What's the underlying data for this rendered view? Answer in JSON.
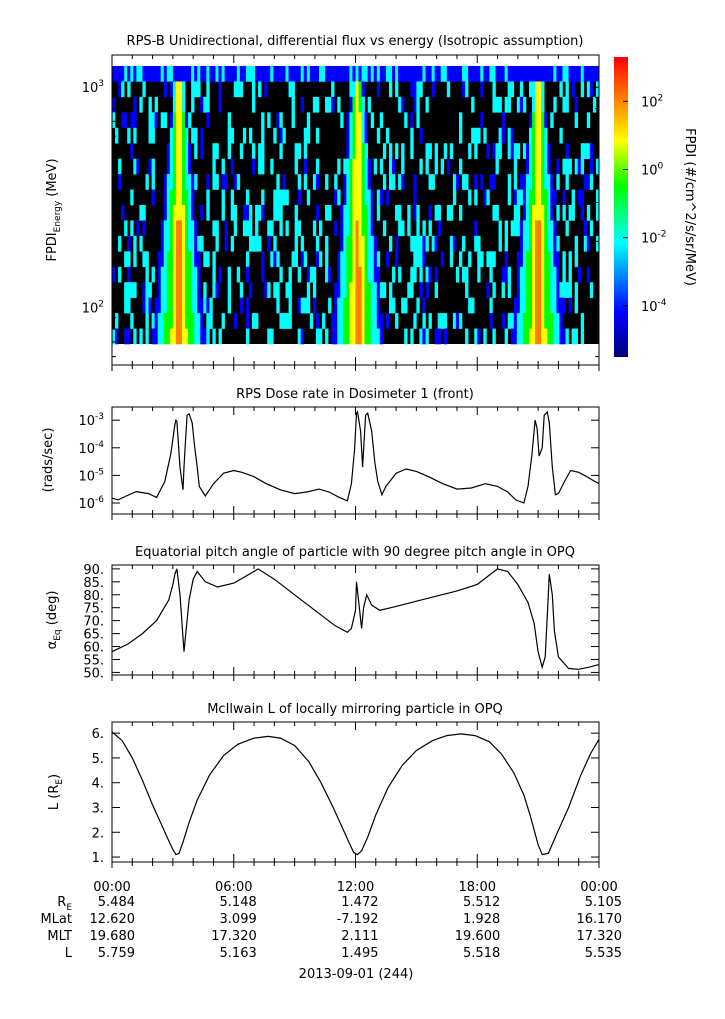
{
  "chart_data": [
    {
      "type": "heatmap",
      "title": "RPS-B  Unidirectional, differential flux vs energy (Isotropic assumption)",
      "ylabel": "FPDI",
      "ylabel_sub": "Energy",
      "ylabel_unit": " (MeV)",
      "yscale": "log",
      "ylim": [
        55,
        1400
      ],
      "yticks": [
        {
          "value": 100,
          "base": "10",
          "exp": "2"
        },
        {
          "value": 1000,
          "base": "10",
          "exp": "3"
        }
      ],
      "x_hours": [
        0,
        24
      ],
      "colorbar": {
        "label": "FPDI (#/cm^2/s/sr/MeV)",
        "scale": "log",
        "range_log10": [
          -5.5,
          3.3
        ],
        "ticks": [
          {
            "log10": 2,
            "base": "10",
            "exp": "2"
          },
          {
            "log10": 0,
            "base": "10",
            "exp": "0"
          },
          {
            "log10": -2,
            "base": "10",
            "exp": "-2"
          },
          {
            "log10": -4,
            "base": "10",
            "exp": "-4"
          }
        ],
        "colormap": [
          "#00007f",
          "#0000ff",
          "#00ffff",
          "#00ff00",
          "#ffff00",
          "#ff7f00",
          "#ff0000"
        ]
      },
      "belt_passes_hours": [
        3.3,
        12.1,
        21.0
      ],
      "background_color": "#000000"
    },
    {
      "type": "line",
      "title": "RPS  Dose rate in Dosimeter 1 (front)",
      "ylabel": "(rads/sec)",
      "yscale": "log",
      "ylim": [
        4e-07,
        0.003
      ],
      "yticks": [
        {
          "value": 1e-06,
          "base": "10",
          "exp": "-6"
        },
        {
          "value": 1e-05,
          "base": "10",
          "exp": "-5"
        },
        {
          "value": 0.0001,
          "base": "10",
          "exp": "-4"
        },
        {
          "value": 0.001,
          "base": "10",
          "exp": "-3"
        }
      ],
      "x_hours": [
        0,
        24
      ],
      "series": [
        {
          "x": [
            0,
            0.3,
            0.7,
            1.2,
            1.8,
            2.2,
            2.6,
            2.9,
            3.1,
            3.15,
            3.2,
            3.35,
            3.5,
            3.55,
            3.6,
            3.7,
            3.8,
            3.95,
            4.05,
            4.2,
            4.3,
            4.6,
            5.0,
            5.5,
            6.0,
            6.4,
            7.0,
            7.6,
            8.3,
            9.0,
            9.6,
            10.2,
            10.7,
            11.2,
            11.6,
            11.8,
            11.95,
            12.05,
            12.1,
            12.15,
            12.25,
            12.35,
            12.5,
            12.6,
            12.8,
            12.95,
            13.1,
            13.3,
            13.5,
            14.0,
            14.5,
            15.0,
            15.6,
            16.3,
            17.0,
            17.7,
            18.4,
            19.0,
            19.5,
            19.9,
            20.3,
            20.5,
            20.7,
            20.85,
            20.95,
            21.05,
            21.2,
            21.3,
            21.45,
            21.55,
            21.7,
            21.85,
            22.0,
            22.3,
            22.6,
            23.0,
            23.4,
            23.8,
            24.0
          ],
          "y": [
            1.5e-06,
            1.3e-06,
            1.8e-06,
            2.6e-06,
            2.2e-06,
            1.6e-06,
            6e-06,
            6e-05,
            0.0007,
            0.001,
            0.0009,
            2e-05,
            3e-06,
            2e-05,
            0.0001,
            0.0015,
            0.0017,
            0.0008,
            0.00015,
            2e-05,
            4e-06,
            1.8e-06,
            5e-06,
            1.2e-05,
            1.5e-05,
            1.3e-05,
            9e-06,
            5e-06,
            3e-06,
            2.2e-06,
            2.5e-06,
            3.2e-06,
            2.5e-06,
            1.6e-06,
            1.2e-06,
            5e-06,
            8e-05,
            0.0018,
            0.002,
            0.0012,
            0.0004,
            2e-05,
            0.0015,
            0.0018,
            0.0004,
            3e-05,
            6e-06,
            2e-06,
            4e-06,
            1.2e-05,
            1.7e-05,
            1.4e-05,
            9e-06,
            5e-06,
            3.2e-06,
            3.5e-06,
            5e-06,
            4e-06,
            2.5e-06,
            1.3e-06,
            1e-06,
            4e-06,
            6e-05,
            0.001,
            0.0005,
            5e-05,
            0.0001,
            0.0015,
            0.002,
            0.0008,
            2e-05,
            2e-06,
            2.2e-06,
            6e-06,
            1.5e-05,
            1.3e-05,
            9e-06,
            6e-06,
            5e-06
          ]
        }
      ]
    },
    {
      "type": "line",
      "title": "Equatorial pitch angle of particle with 90 degree pitch angle in OPQ",
      "ylabel": "α",
      "ylabel_sub": "Eq",
      "ylabel_unit": " (deg)",
      "ylim": [
        49,
        91.5
      ],
      "ytick_labels": [
        "50.",
        "55.",
        "60.",
        "65.",
        "70.",
        "75.",
        "80.",
        "85.",
        "90."
      ],
      "x_hours": [
        0,
        24
      ],
      "series": [
        {
          "x": [
            0,
            0.8,
            1.5,
            2.2,
            2.8,
            3.0,
            3.1,
            3.2,
            3.35,
            3.55,
            3.8,
            4.0,
            4.2,
            4.6,
            5.2,
            6.0,
            7.0,
            7.2,
            8.0,
            9.0,
            10.0,
            11.0,
            11.6,
            11.8,
            12.0,
            12.05,
            12.15,
            12.3,
            12.4,
            12.55,
            12.8,
            13.2,
            14.0,
            15.0,
            16.0,
            17.0,
            18.0,
            18.5,
            19.0,
            19.5,
            20.0,
            20.5,
            20.8,
            21.0,
            21.2,
            21.35,
            21.45,
            21.55,
            21.7,
            21.8,
            22.0,
            22.5,
            23.0,
            23.5,
            24.0
          ],
          "y": [
            58,
            61,
            65,
            70,
            78,
            84,
            88,
            90,
            80,
            58,
            78,
            86,
            89,
            85,
            83,
            84.5,
            89,
            90,
            86,
            80,
            74,
            68,
            65.5,
            67,
            74,
            85,
            78,
            67,
            75,
            80,
            76,
            74,
            75.5,
            77.5,
            79.5,
            81.5,
            84,
            87,
            90,
            89,
            84,
            77,
            69,
            58,
            52,
            56,
            72,
            88,
            80,
            66,
            56,
            51.5,
            51.2,
            52,
            53
          ]
        }
      ]
    },
    {
      "type": "line",
      "title": "McIlwain L of locally mirroring particle in OPQ",
      "ylabel": "L (R",
      "ylabel_sub": "E",
      "ylabel_unit": ")",
      "ylim": [
        0.8,
        6.45
      ],
      "ytick_labels": [
        "1.",
        "2.",
        "3.",
        "4.",
        "5.",
        "6."
      ],
      "x_hours": [
        0,
        24
      ],
      "series": [
        {
          "x": [
            0,
            0.5,
            1.0,
            1.5,
            2.0,
            2.5,
            2.8,
            3.0,
            3.15,
            3.3,
            3.5,
            3.8,
            4.2,
            4.8,
            5.5,
            6.2,
            7.0,
            7.7,
            8.3,
            9.0,
            9.7,
            10.3,
            10.9,
            11.4,
            11.7,
            11.9,
            12.1,
            12.3,
            12.6,
            13.0,
            13.6,
            14.3,
            15.0,
            15.8,
            16.5,
            17.2,
            17.9,
            18.6,
            19.2,
            19.8,
            20.3,
            20.6,
            20.8,
            21.0,
            21.2,
            21.5,
            21.9,
            22.5,
            23.1,
            23.6,
            24.0
          ],
          "y": [
            6.05,
            5.7,
            5.0,
            4.1,
            3.1,
            2.2,
            1.65,
            1.3,
            1.1,
            1.15,
            1.6,
            2.4,
            3.3,
            4.3,
            5.1,
            5.55,
            5.8,
            5.87,
            5.8,
            5.5,
            4.85,
            4.0,
            3.0,
            2.1,
            1.55,
            1.2,
            1.1,
            1.25,
            1.8,
            2.7,
            3.8,
            4.7,
            5.3,
            5.7,
            5.9,
            5.97,
            5.9,
            5.65,
            5.15,
            4.4,
            3.5,
            2.7,
            2.1,
            1.5,
            1.1,
            1.15,
            1.9,
            3.0,
            4.3,
            5.2,
            5.75
          ]
        }
      ]
    }
  ],
  "time_axis": {
    "tick_labels": [
      "00:00",
      "06:00",
      "12:00",
      "18:00",
      "00:00"
    ],
    "date_label": "2013-09-01 (244)"
  },
  "ephemeris": {
    "rows": [
      {
        "label": "R",
        "label_sub": "E",
        "values": [
          "5.484",
          "5.148",
          "1.472",
          "5.512",
          "5.105"
        ]
      },
      {
        "label": "MLat",
        "label_sub": "",
        "values": [
          "12.620",
          "3.099",
          "-7.192",
          "1.928",
          "16.170"
        ]
      },
      {
        "label": "MLT",
        "label_sub": "",
        "values": [
          "19.680",
          "17.320",
          "2.111",
          "19.600",
          "17.320"
        ]
      },
      {
        "label": "L",
        "label_sub": "",
        "values": [
          "5.759",
          "5.163",
          "1.495",
          "5.518",
          "5.535"
        ]
      }
    ]
  }
}
